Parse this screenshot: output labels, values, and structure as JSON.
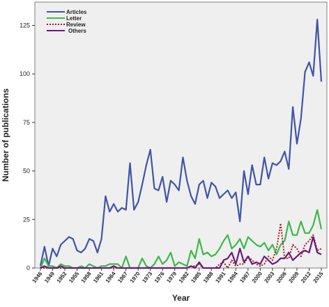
{
  "chart_data": {
    "type": "line",
    "xlabel": "Year",
    "ylabel": "Number of publications",
    "ylim": [
      0,
      137
    ],
    "xlim": [
      1946,
      2015
    ],
    "yticks": [
      0,
      25,
      50,
      75,
      100,
      125
    ],
    "xticks": [
      1946,
      1949,
      1952,
      1955,
      1958,
      1961,
      1964,
      1967,
      1970,
      1973,
      1976,
      1979,
      1982,
      1985,
      1988,
      1991,
      1994,
      1997,
      2000,
      2003,
      2006,
      2009,
      2012,
      2015
    ],
    "xtick_labels": [
      "1946",
      "1949",
      "1952",
      "1955",
      "1958",
      "1961",
      "1964",
      "1967",
      "1970",
      "1973",
      "1976",
      "1979",
      "1982",
      "1985",
      "1988",
      "1991",
      "1994",
      "1997",
      "2000",
      "2003",
      "2006",
      "2009",
      "2012",
      "2015"
    ],
    "legend_position": "top-left",
    "grid": false,
    "background": "#efefef",
    "series": [
      {
        "name": "Articles",
        "color": "#3f55a6",
        "style": "solid",
        "x": [
          1946,
          1947,
          1948,
          1949,
          1950,
          1951,
          1952,
          1953,
          1954,
          1955,
          1956,
          1957,
          1958,
          1959,
          1960,
          1961,
          1962,
          1963,
          1964,
          1965,
          1966,
          1967,
          1968,
          1969,
          1970,
          1971,
          1972,
          1973,
          1974,
          1975,
          1976,
          1977,
          1978,
          1979,
          1980,
          1981,
          1982,
          1983,
          1984,
          1985,
          1986,
          1987,
          1988,
          1989,
          1990,
          1991,
          1992,
          1993,
          1994,
          1995,
          1996,
          1997,
          1998,
          1999,
          2000,
          2001,
          2002,
          2003,
          2004,
          2005,
          2006,
          2007,
          2008,
          2009,
          2010,
          2011,
          2012,
          2013,
          2014,
          2015
        ],
        "y": [
          1,
          11,
          1,
          10,
          6,
          12,
          14,
          16,
          15,
          9,
          8,
          10,
          15,
          14,
          8,
          15,
          37,
          29,
          33,
          29,
          31,
          30,
          54,
          30,
          34,
          43,
          53,
          61,
          41,
          40,
          47,
          34,
          45,
          43,
          40,
          57,
          45,
          37,
          33,
          43,
          45,
          36,
          44,
          42,
          36,
          38,
          40,
          36,
          39,
          24,
          50,
          38,
          53,
          43,
          43,
          57,
          46,
          54,
          53,
          55,
          60,
          51,
          83,
          64,
          77,
          101,
          106,
          99,
          128,
          96
        ]
      },
      {
        "name": "Letter",
        "color": "#3cb84a",
        "style": "solid",
        "x": [
          1946,
          1947,
          1948,
          1949,
          1950,
          1951,
          1952,
          1953,
          1954,
          1955,
          1956,
          1957,
          1958,
          1959,
          1960,
          1961,
          1962,
          1963,
          1964,
          1965,
          1966,
          1967,
          1968,
          1969,
          1970,
          1971,
          1972,
          1973,
          1974,
          1975,
          1976,
          1977,
          1978,
          1979,
          1980,
          1981,
          1982,
          1983,
          1984,
          1985,
          1986,
          1987,
          1988,
          1989,
          1990,
          1991,
          1992,
          1993,
          1994,
          1995,
          1996,
          1997,
          1998,
          1999,
          2000,
          2001,
          2002,
          2003,
          2004,
          2005,
          2006,
          2007,
          2008,
          2009,
          2010,
          2011,
          2012,
          2013,
          2014,
          2015
        ],
        "y": [
          0,
          5,
          1,
          1,
          0,
          2,
          1,
          1,
          0,
          0,
          1,
          0,
          2,
          1,
          0,
          1,
          1,
          2,
          2,
          2,
          0,
          6,
          0,
          0,
          0,
          5,
          1,
          0,
          2,
          6,
          2,
          4,
          8,
          1,
          3,
          2,
          1,
          9,
          5,
          15,
          7,
          8,
          6,
          7,
          10,
          14,
          17,
          10,
          12,
          15,
          10,
          16,
          14,
          12,
          11,
          13,
          9,
          12,
          7,
          12,
          14,
          24,
          17,
          17,
          24,
          18,
          18,
          22,
          30,
          20
        ]
      },
      {
        "name": "Review",
        "color": "#a01c1c",
        "style": "dotted",
        "x": [
          1946,
          1947,
          1948,
          1949,
          1950,
          1951,
          1952,
          1953,
          1954,
          1955,
          1956,
          1957,
          1958,
          1959,
          1960,
          1961,
          1962,
          1963,
          1964,
          1965,
          1966,
          1967,
          1968,
          1969,
          1970,
          1971,
          1972,
          1973,
          1974,
          1975,
          1976,
          1977,
          1978,
          1979,
          1980,
          1981,
          1982,
          1983,
          1984,
          1985,
          1986,
          1987,
          1988,
          1989,
          1990,
          1991,
          1992,
          1993,
          1994,
          1995,
          1996,
          1997,
          1998,
          1999,
          2000,
          2001,
          2002,
          2003,
          2004,
          2005,
          2006,
          2007,
          2008,
          2009,
          2010,
          2011,
          2012,
          2013,
          2014,
          2015
        ],
        "y": [
          0,
          0,
          0,
          0,
          0,
          0,
          0,
          0,
          0,
          0,
          0,
          0,
          0,
          0,
          0,
          0,
          0,
          0,
          0,
          0,
          0,
          0,
          0,
          0,
          0,
          0,
          0,
          0,
          0,
          0,
          0,
          0,
          0,
          0,
          0,
          0,
          0,
          1,
          1,
          2,
          0,
          0,
          0,
          0,
          2,
          3,
          0,
          4,
          1,
          2,
          2,
          6,
          4,
          2,
          1,
          2,
          6,
          4,
          10,
          23,
          5,
          5,
          12,
          10,
          6,
          12,
          14,
          17,
          9,
          10
        ]
      },
      {
        "name": "Others",
        "color": "#6b1a7a",
        "style": "solid",
        "x": [
          1946,
          1947,
          1948,
          1949,
          1950,
          1951,
          1952,
          1953,
          1954,
          1955,
          1956,
          1957,
          1958,
          1959,
          1960,
          1961,
          1962,
          1963,
          1964,
          1965,
          1966,
          1967,
          1968,
          1969,
          1970,
          1971,
          1972,
          1973,
          1974,
          1975,
          1976,
          1977,
          1978,
          1979,
          1980,
          1981,
          1982,
          1983,
          1984,
          1985,
          1986,
          1987,
          1988,
          1989,
          1990,
          1991,
          1992,
          1993,
          1994,
          1995,
          1996,
          1997,
          1998,
          1999,
          2000,
          2001,
          2002,
          2003,
          2004,
          2005,
          2006,
          2007,
          2008,
          2009,
          2010,
          2011,
          2012,
          2013,
          2014,
          2015
        ],
        "y": [
          0,
          1,
          0,
          0,
          0,
          1,
          0,
          0,
          0,
          0,
          0,
          0,
          0,
          0,
          0,
          0,
          0,
          0,
          1,
          0,
          0,
          0,
          0,
          0,
          0,
          0,
          0,
          0,
          0,
          0,
          0,
          0,
          0,
          0,
          0,
          0,
          0,
          1,
          0,
          3,
          0,
          0,
          0,
          0,
          0,
          4,
          5,
          8,
          2,
          10,
          3,
          6,
          2,
          3,
          2,
          6,
          4,
          2,
          3,
          5,
          5,
          8,
          4,
          6,
          8,
          9,
          8,
          16,
          8,
          7
        ]
      }
    ]
  }
}
